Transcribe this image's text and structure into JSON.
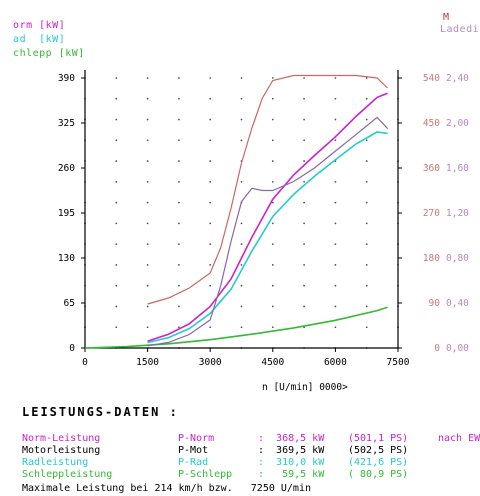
{
  "header_left": [
    {
      "name": "orm",
      "unit": "[kW]",
      "color": "#cc22cc"
    },
    {
      "name": "ad",
      "unit": "[kW]",
      "color": "#22cccc"
    },
    {
      "name": "chlepp",
      "unit": "[kW]",
      "color": "#33bb33"
    }
  ],
  "header_right": [
    {
      "text": "M",
      "color": "#cc3333"
    },
    {
      "text": "Ladedi",
      "color": "#bb88bb"
    }
  ],
  "chart_data": {
    "type": "line",
    "xlabel": "n [U/min] 0000>",
    "xlim": [
      0,
      7500
    ],
    "ylim": [
      0,
      390
    ],
    "x_ticks": [
      "0",
      "1500",
      "3000",
      "4500",
      "6000",
      "7500"
    ],
    "y_ticks": [
      "0",
      "65",
      "130",
      "195",
      "260",
      "325",
      "390"
    ],
    "right_axis_1": {
      "ticks": [
        "0",
        "90",
        "180",
        "270",
        "360",
        "450",
        "540"
      ],
      "range": [
        0,
        540
      ],
      "color": "#cc7777"
    },
    "right_axis_2": {
      "ticks": [
        "0,00",
        "0,40",
        "0,80",
        "1,20",
        "1,60",
        "2,00",
        "2,40"
      ],
      "range": [
        0,
        2.4
      ],
      "color": "#bb88bb"
    },
    "series": [
      {
        "name": "Norm-Leistung",
        "color": "#cc22cc",
        "axis": "left",
        "x": [
          1500,
          2000,
          2500,
          3000,
          3500,
          4000,
          4500,
          5000,
          5500,
          6000,
          6500,
          7000,
          7250
        ],
        "y": [
          10,
          20,
          35,
          60,
          100,
          160,
          215,
          250,
          278,
          305,
          335,
          362,
          368
        ]
      },
      {
        "name": "Radleistung",
        "color": "#22cccc",
        "axis": "left",
        "x": [
          1500,
          2000,
          2500,
          3000,
          3500,
          4000,
          4500,
          5000,
          5500,
          6000,
          6500,
          7000,
          7250
        ],
        "y": [
          8,
          15,
          28,
          50,
          85,
          140,
          190,
          222,
          248,
          272,
          295,
          312,
          310
        ]
      },
      {
        "name": "Schleppleistung",
        "color": "#33bb33",
        "axis": "left",
        "x": [
          0,
          1000,
          2000,
          3000,
          4000,
          5000,
          6000,
          7000,
          7250
        ],
        "y": [
          0,
          2,
          6,
          12,
          20,
          29,
          40,
          54,
          59
        ]
      },
      {
        "name": "M",
        "color": "#cc6666",
        "axis": "right_1",
        "x": [
          1500,
          2000,
          2500,
          3000,
          3250,
          3500,
          3750,
          4000,
          4250,
          4500,
          5000,
          5500,
          6000,
          6500,
          7000,
          7250
        ],
        "y": [
          88,
          100,
          120,
          150,
          200,
          280,
          370,
          440,
          500,
          535,
          545,
          545,
          545,
          545,
          540,
          520
        ]
      },
      {
        "name": "Ladedruck",
        "color": "#8866aa",
        "axis": "right_2",
        "x": [
          1500,
          2000,
          2500,
          3000,
          3250,
          3500,
          3750,
          4000,
          4250,
          4500,
          5000,
          5500,
          6000,
          6500,
          7000,
          7250
        ],
        "y": [
          0.02,
          0.05,
          0.12,
          0.25,
          0.55,
          0.95,
          1.3,
          1.42,
          1.4,
          1.4,
          1.48,
          1.6,
          1.75,
          1.9,
          2.05,
          1.95
        ]
      }
    ]
  },
  "summary": {
    "title": "LEISTUNGS-DATEN :",
    "rows": [
      {
        "c1": "Norm-Leistung",
        "c2": "P-Norm",
        "c3": ":  368,5 kW",
        "c4": "(501,1 PS)",
        "c5": "nach EWG",
        "color": "#cc22cc"
      },
      {
        "c1": "Motorleistung",
        "c2": "P-Mot",
        "c3": ":  369,5 kW",
        "c4": "(502,5 PS)",
        "c5": "",
        "color": "#000000"
      },
      {
        "c1": "Radleistung",
        "c2": "P-Rad",
        "c3": ":  310,0 kW",
        "c4": "(421,6 PS)",
        "c5": "",
        "color": "#22cccc"
      },
      {
        "c1": "Schleppleistung",
        "c2": "P-Schlepp",
        "c3": ":   59,5 kW",
        "c4": "( 80,9 PS)",
        "c5": "",
        "color": "#33bb33"
      }
    ],
    "max_line": "Maximale Leistung bei 214 km/h bzw.   7250 U/min"
  }
}
